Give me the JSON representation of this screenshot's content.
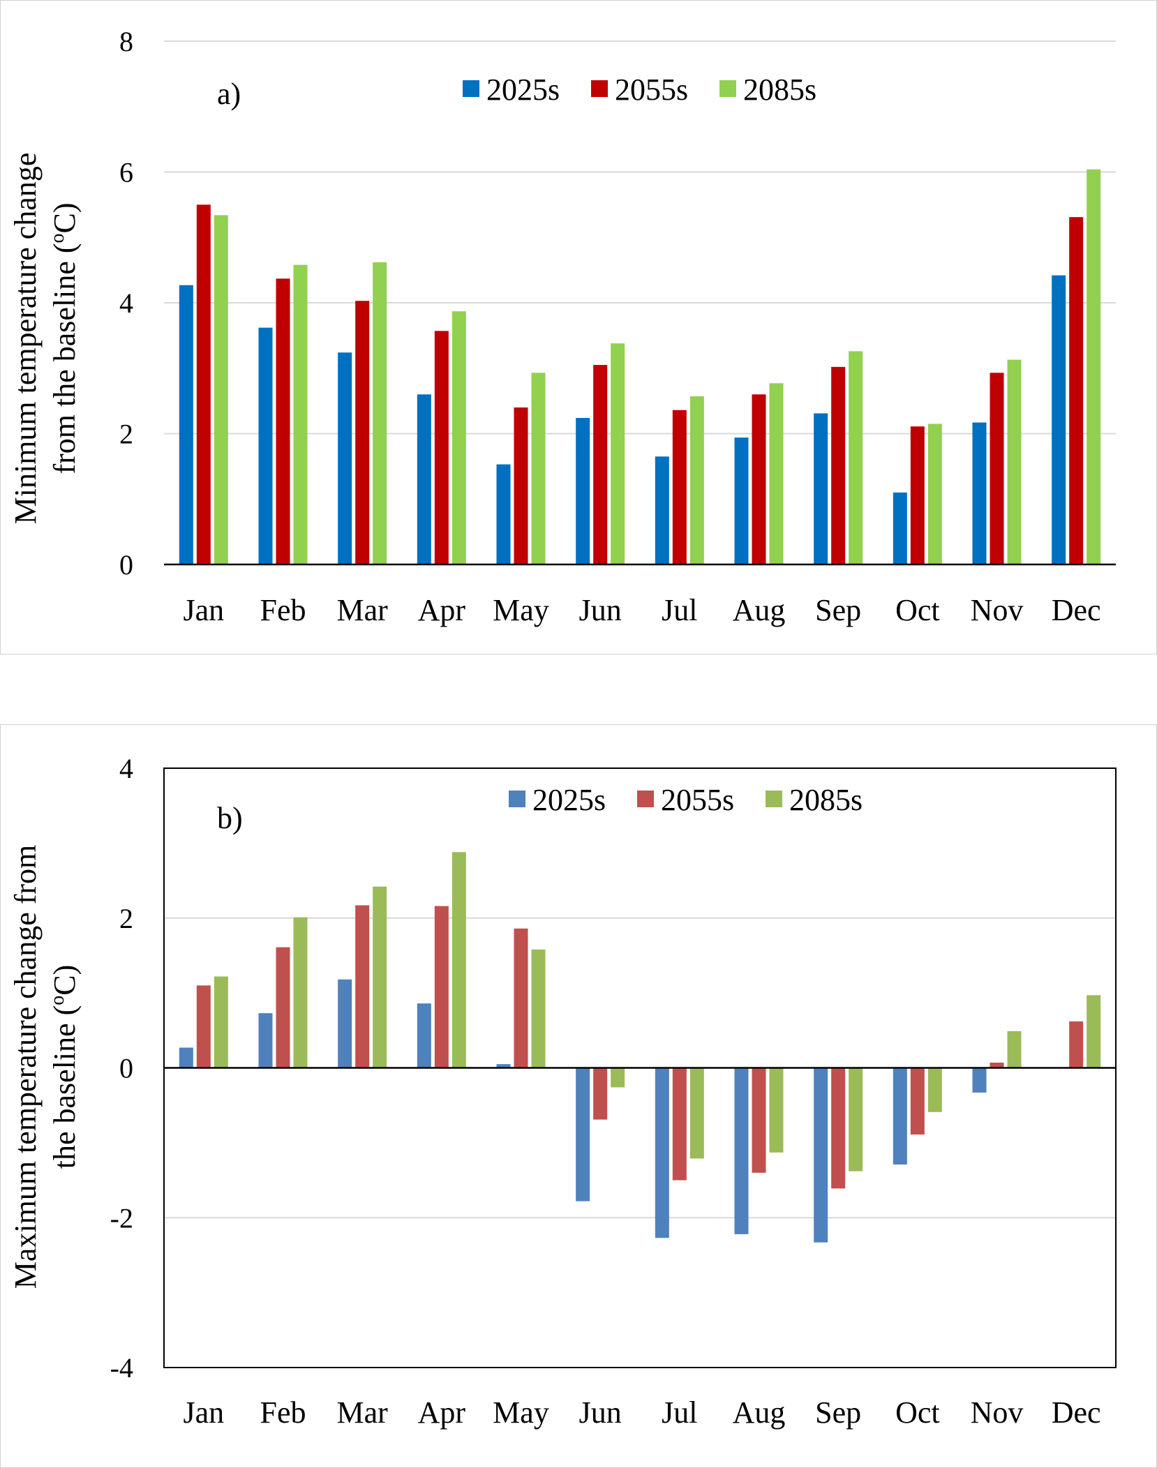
{
  "chart_data": [
    {
      "type": "bar",
      "panel_label": "a)",
      "ylabel_line1": "Minimum temperature change",
      "ylabel_line2": "from the baseline (",
      "ylabel_sup": "o",
      "ylabel_unit": "C)",
      "ylim": [
        0,
        8
      ],
      "yticks": [
        0,
        2,
        4,
        6,
        8
      ],
      "ytick_labels": [
        "0",
        "2",
        "4",
        "6",
        "8"
      ],
      "grid": true,
      "legend_position": "top-center",
      "categories": [
        "Jan",
        "Feb",
        "Mar",
        "Apr",
        "May",
        "Jun",
        "Jul",
        "Aug",
        "Sep",
        "Oct",
        "Nov",
        "Dec"
      ],
      "series": [
        {
          "name": "2025s",
          "color": "#0070C0",
          "values": [
            4.27,
            3.62,
            3.24,
            2.6,
            1.53,
            2.24,
            1.65,
            1.94,
            2.31,
            1.1,
            2.17,
            4.42
          ]
        },
        {
          "name": "2055s",
          "color": "#C00000",
          "values": [
            5.5,
            4.37,
            4.03,
            3.57,
            2.4,
            3.05,
            2.36,
            2.6,
            3.02,
            2.11,
            2.93,
            5.31
          ]
        },
        {
          "name": "2085s",
          "color": "#92D050",
          "values": [
            5.34,
            4.58,
            4.62,
            3.87,
            2.93,
            3.38,
            2.57,
            2.77,
            3.26,
            2.15,
            3.13,
            6.04
          ]
        }
      ]
    },
    {
      "type": "bar",
      "panel_label": "b)",
      "ylabel_line1": "Maximum temperature change from",
      "ylabel_line2": "the baseline (",
      "ylabel_sup": "o",
      "ylabel_unit": "C)",
      "ylim": [
        -4,
        4
      ],
      "yticks": [
        -4,
        -2,
        0,
        2,
        4
      ],
      "ytick_labels": [
        "-4",
        "-2",
        "0",
        "2",
        "4"
      ],
      "grid": true,
      "legend_position": "top-center",
      "categories": [
        "Jan",
        "Feb",
        "Mar",
        "Apr",
        "May",
        "Jun",
        "Jul",
        "Aug",
        "Sep",
        "Oct",
        "Nov",
        "Dec"
      ],
      "series": [
        {
          "name": "2025s",
          "color": "#4F81BD",
          "values": [
            0.27,
            0.73,
            1.18,
            0.86,
            0.05,
            -1.78,
            -2.27,
            -2.22,
            -2.33,
            -1.29,
            -0.33,
            0.0
          ]
        },
        {
          "name": "2055s",
          "color": "#C0504D",
          "values": [
            1.1,
            1.61,
            2.17,
            2.16,
            1.86,
            -0.69,
            -1.5,
            -1.4,
            -1.61,
            -0.89,
            0.07,
            0.62
          ]
        },
        {
          "name": "2085s",
          "color": "#9BBB59",
          "values": [
            1.22,
            2.01,
            2.42,
            2.88,
            1.58,
            -0.26,
            -1.21,
            -1.13,
            -1.38,
            -0.59,
            0.49,
            0.97
          ]
        }
      ]
    }
  ]
}
